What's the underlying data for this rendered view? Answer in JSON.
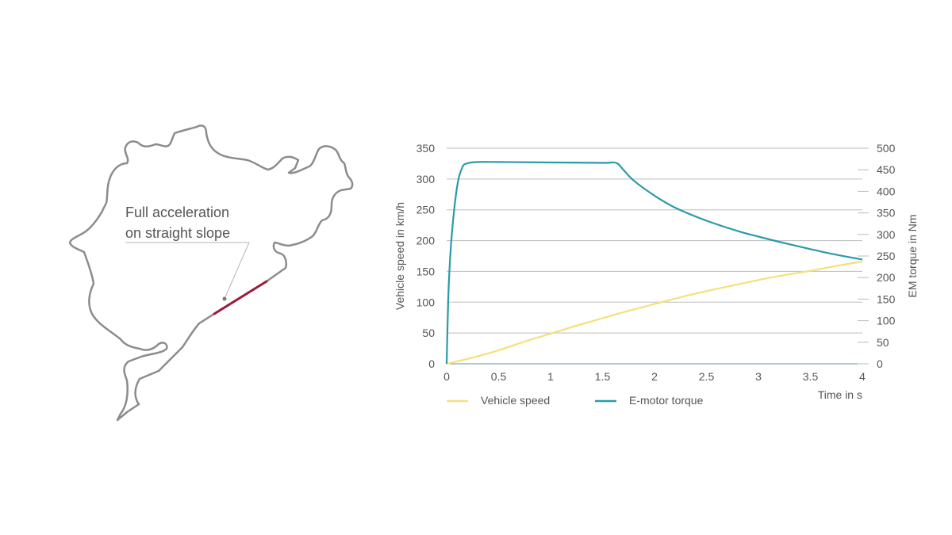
{
  "track": {
    "annotation_line1": "Full acceleration",
    "annotation_line2": "on straight slope",
    "highlight_color": "#9b1b3b",
    "track_color": "#8c8c8c"
  },
  "chart_data": {
    "type": "line",
    "xlabel": "Time in s",
    "ylabel": "Vehicle speed in km/h",
    "y2label": "EM torque in Nm",
    "xlim": [
      0,
      4
    ],
    "ylim": [
      0,
      350
    ],
    "y2lim": [
      0,
      500
    ],
    "xticks": [
      0,
      0.5,
      1,
      1.5,
      2,
      2.5,
      3,
      3.5,
      4
    ],
    "xtick_labels": [
      "0",
      "0.5",
      "1",
      "1.5",
      "2",
      "2.5",
      "3",
      "3.5",
      "4"
    ],
    "yticks": [
      0,
      50,
      100,
      150,
      200,
      250,
      300,
      350
    ],
    "ytick_labels": [
      "0",
      "50",
      "100",
      "150",
      "200",
      "250",
      "300",
      "350"
    ],
    "y2ticks": [
      0,
      50,
      100,
      150,
      200,
      250,
      300,
      350,
      400,
      450,
      500
    ],
    "y2tick_labels": [
      "0",
      "50",
      "100",
      "150",
      "200",
      "250",
      "300",
      "350",
      "400",
      "450",
      "500"
    ],
    "grid": true,
    "legend_position": "bottom-left",
    "series": [
      {
        "name": "Vehicle speed",
        "axis": "left",
        "color": "#f5e07a",
        "x": [
          0,
          0.25,
          0.5,
          0.75,
          1,
          1.25,
          1.5,
          1.75,
          2,
          2.25,
          2.5,
          2.75,
          3,
          3.25,
          3.5,
          3.75,
          4
        ],
        "y": [
          0,
          10,
          22,
          36,
          49,
          62,
          74,
          86,
          97,
          108,
          118,
          127,
          136,
          144,
          151,
          159,
          166
        ]
      },
      {
        "name": "E-motor torque",
        "axis": "right",
        "color": "#2a9ba8",
        "x": [
          0,
          0.02,
          0.05,
          0.1,
          0.15,
          0.2,
          0.3,
          0.5,
          1,
          1.5,
          1.63,
          1.7,
          1.8,
          2,
          2.2,
          2.5,
          2.8,
          3,
          3.25,
          3.5,
          3.75,
          4
        ],
        "y": [
          0,
          180,
          300,
          410,
          455,
          465,
          468,
          468,
          467,
          466,
          466,
          450,
          425,
          390,
          362,
          332,
          308,
          295,
          280,
          266,
          253,
          242
        ]
      }
    ]
  }
}
